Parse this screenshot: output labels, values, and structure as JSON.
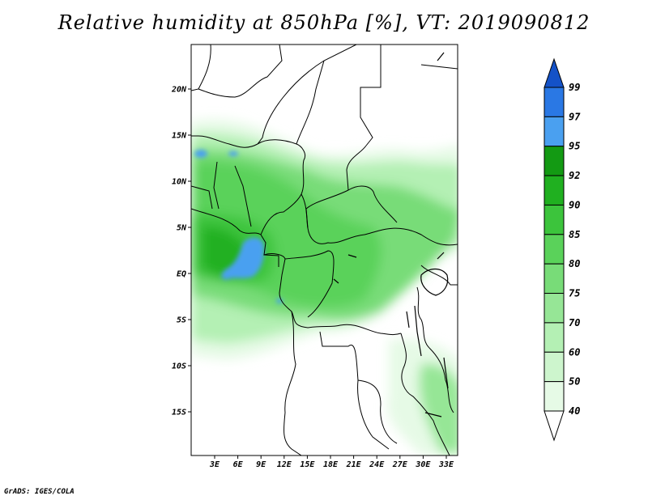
{
  "title": "Relative humidity at 850hPa [%], VT: 2019090812",
  "credit": "GrADS: IGES/COLA",
  "map": {
    "lat_labels": [
      "20N",
      "15N",
      "10N",
      "5N",
      "EQ",
      "5S",
      "10S",
      "15S"
    ],
    "lon_labels": [
      "3E",
      "6E",
      "9E",
      "12E",
      "15E",
      "18E",
      "21E",
      "24E",
      "27E",
      "30E",
      "33E"
    ]
  },
  "colorbar": {
    "levels": [
      "40",
      "50",
      "60",
      "70",
      "75",
      "80",
      "85",
      "90",
      "92",
      "95",
      "97",
      "99"
    ],
    "colors": [
      "#ffffff",
      "#e6fae6",
      "#cdf5cd",
      "#b4f0b4",
      "#96e696",
      "#78dc78",
      "#5ad25a",
      "#3cc43c",
      "#20b020",
      "#139a13",
      "#4aa0f0",
      "#2a78e4",
      "#1452c8"
    ]
  }
}
